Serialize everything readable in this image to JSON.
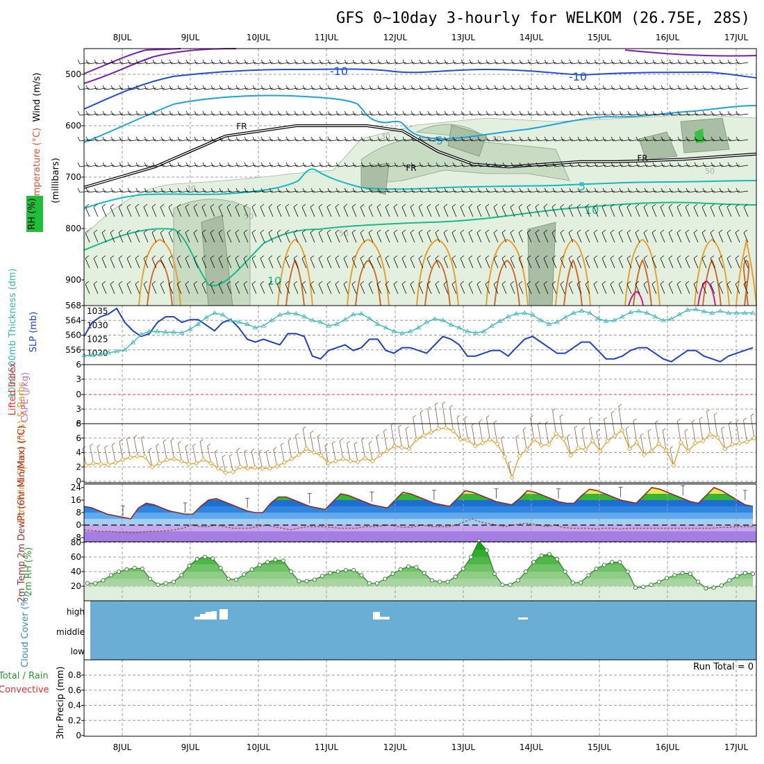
{
  "title": "GFS 0~10day 3-hourly for WELKOM (26.75E, 28S)",
  "dates": [
    "8JUL",
    "9JUL",
    "10JUL",
    "11JUL",
    "12JUL",
    "13JUL",
    "14JUL",
    "15JUL",
    "16JUL",
    "17JUL"
  ],
  "colors": {
    "cloud": "#6aaed6",
    "temp_fill_top": "#20a020",
    "rh_fill": "#3cb043",
    "dew_line": "#8b5a3c",
    "slp": "#1f3fc8",
    "thickness": "#33b5b5",
    "wind10": "#e69a28",
    "li_zero": "#e33"
  },
  "chart_data": [
    {
      "panel": "upper-air",
      "type": "contour",
      "ylabel_parts": [
        "Wind (m/s)",
        "Temperature (°C)",
        "RH (%)",
        "(millibars)"
      ],
      "yticks": [
        500,
        600,
        700,
        800,
        900
      ],
      "ylim": [
        1000,
        450
      ],
      "contour_labels": [
        "-10",
        "-10",
        "FR",
        "FR",
        "FR",
        "-5",
        "5",
        "10",
        "10",
        "30",
        "30",
        "30",
        "50",
        "50",
        "50"
      ],
      "freezing_level_mb": [
        720,
        700,
        680,
        650,
        620,
        610,
        600,
        600,
        600,
        610,
        650,
        675,
        680,
        675,
        670,
        670,
        668,
        665,
        660,
        655
      ],
      "t10_mb": [
        520,
        500,
        495,
        495,
        495,
        498,
        500,
        500,
        500,
        502,
        505
      ]
    },
    {
      "panel": "thickness-slp",
      "type": "line",
      "ylabel_left": "1000-500mb Thickness (dm)",
      "ylabel_right": "SLP (mb)",
      "yticks_left": [
        556,
        560,
        564,
        568
      ],
      "yticks_right": [
        1020,
        1025,
        1030,
        1035
      ],
      "series": [
        {
          "name": "SLP (mb)",
          "values": [
            1026,
            1031,
            1033,
            1034,
            1036,
            1031,
            1028,
            1026,
            1027,
            1031,
            1033,
            1033,
            1031,
            1032,
            1032,
            1030,
            1028,
            1031,
            1032,
            1029,
            1025,
            1024,
            1025,
            1024,
            1023,
            1027,
            1027,
            1026,
            1019,
            1018,
            1021,
            1022,
            1023,
            1021,
            1022,
            1025,
            1025,
            1021,
            1020,
            1022,
            1022,
            1021,
            1020,
            1023,
            1026,
            1025,
            1023,
            1019,
            1019,
            1020,
            1021,
            1021,
            1019,
            1022,
            1025,
            1026,
            1024,
            1022,
            1020,
            1020,
            1022,
            1024,
            1024,
            1021,
            1018,
            1018,
            1019,
            1021,
            1022,
            1022,
            1020,
            1018,
            1017,
            1019,
            1021,
            1021,
            1019,
            1018,
            1017,
            1019,
            1020,
            1021,
            1022
          ]
        },
        {
          "name": "1000-500mb Thickness (dm)",
          "values": [
            554.5,
            554.5,
            554.8,
            555.2,
            555.6,
            556,
            558,
            560.2,
            561,
            561,
            560.8,
            560.8,
            560.6,
            561.6,
            563,
            564.8,
            566,
            565.5,
            564,
            563.5,
            563,
            562,
            562.5,
            564,
            565.5,
            566,
            565.8,
            565,
            564,
            563.5,
            562.5,
            563,
            564.2,
            565.6,
            565.8,
            564.5,
            563,
            562,
            561,
            560.5,
            561,
            562,
            563.5,
            564.4,
            564,
            562.8,
            562,
            561,
            560.6,
            561,
            562.5,
            563.8,
            565,
            565.8,
            566,
            565.5,
            564,
            563,
            563.5,
            564.8,
            566,
            566.6,
            566,
            564.5,
            563.8,
            564,
            565,
            566.2,
            566.5,
            566,
            565,
            564,
            564.4,
            565.6,
            566.8,
            567,
            566.4,
            566,
            566.5,
            566,
            566,
            566,
            566
          ]
        }
      ]
    },
    {
      "panel": "stability",
      "type": "line",
      "ylabel_left": "Lifted Index",
      "ylabel_right": "CAPE (J/kg)",
      "yticks": [
        "6",
        "3",
        "0",
        "3",
        "6"
      ]
    },
    {
      "panel": "wind10",
      "type": "line",
      "ylabel": "10m Wind Speed (m/s) & Barbs",
      "yticks": [
        0,
        2,
        4,
        6,
        8
      ],
      "series": [
        {
          "name": "10m Wind Speed",
          "values": [
            2.2,
            2.5,
            2.4,
            2.3,
            2.6,
            3,
            3.3,
            3.5,
            3.4,
            2,
            2.5,
            3,
            3.1,
            2.8,
            2.4,
            2.5,
            3,
            2.5,
            1.8,
            1.2,
            1.3,
            2,
            1.8,
            1.9,
            1.8,
            1.8,
            2.1,
            2.6,
            3.1,
            3.7,
            4.5,
            4,
            3.6,
            2.5,
            2.8,
            3.1,
            2.8,
            2.7,
            3.2,
            2.8,
            3.6,
            4.2,
            4.9,
            4.7,
            4.5,
            5.8,
            6.4,
            6.8,
            7.3,
            7.4,
            7,
            5.8,
            5.7,
            4.9,
            5.3,
            5.8,
            5.2,
            3.4,
            0.5,
            3.5,
            4.4,
            5.8,
            5,
            5.1,
            6.6,
            5.9,
            3.6,
            4.6,
            4.4,
            5.6,
            4.2,
            5.6,
            6.3,
            7.1,
            4.5,
            5.4,
            3.7,
            4.2,
            5.2,
            4.3,
            2.2,
            5.4,
            4.2,
            5.3,
            5.6,
            6.5,
            6.1,
            4.5,
            5.1,
            5.3,
            5.5,
            6
          ]
        }
      ]
    },
    {
      "panel": "temperature",
      "type": "area",
      "ylabel": "2m Temp 2m DewPt (6hr Min/Max) (°C)",
      "yticks": [
        -8,
        0,
        8,
        16,
        24
      ],
      "series": [
        {
          "name": "2m Temp",
          "values": [
            12,
            11,
            9,
            7,
            6,
            5,
            4,
            11,
            14,
            13,
            11,
            9,
            8,
            7,
            7,
            12,
            16,
            17,
            15,
            13,
            11,
            9,
            8,
            8,
            14,
            18,
            18,
            16,
            14,
            12,
            11,
            10,
            15,
            20,
            19,
            17,
            15,
            13,
            12,
            11,
            16,
            21,
            20,
            18,
            16,
            14,
            13,
            12,
            17,
            22,
            21,
            19,
            17,
            15,
            14,
            13,
            17,
            22,
            21,
            19,
            17,
            15,
            14,
            14,
            19,
            23,
            22,
            20,
            18,
            16,
            15,
            14,
            19,
            24,
            23,
            21,
            19,
            17,
            15,
            14,
            19,
            24,
            22,
            19,
            16,
            13,
            12
          ]
        },
        {
          "name": "2m DewPt",
          "values": [
            -3,
            -3.5,
            -4,
            -4,
            -4.5,
            -4.5,
            -5,
            -4.5,
            -4,
            -4,
            -3.5,
            -3,
            -2,
            0,
            -1,
            -1,
            0,
            -1,
            -2,
            -2,
            -2,
            -1,
            0,
            -1,
            -2,
            -3,
            -2,
            -1,
            -1,
            -1,
            -1.5,
            -2,
            -2,
            -2,
            -1,
            -1,
            -0.5,
            0,
            -1,
            -1.5,
            -1,
            0,
            -1,
            -1,
            -1,
            0,
            2,
            4,
            2,
            1,
            0,
            -1,
            0,
            1,
            1,
            0,
            -1,
            0,
            -1.5,
            -2,
            -2,
            -2,
            -2.5,
            -2,
            -2,
            -2.5,
            -2,
            -2,
            -2,
            -2,
            -2,
            -2,
            -2,
            -2,
            -2,
            -2,
            -2,
            -1.5,
            -1.5,
            -1,
            -1,
            -1
          ]
        }
      ]
    },
    {
      "panel": "rh",
      "type": "area",
      "ylabel": "2m RH (%)",
      "yticks": [
        20,
        40,
        60,
        80
      ],
      "series": [
        {
          "name": "2m RH",
          "values": [
            24,
            24,
            28,
            35,
            40,
            43,
            45,
            44,
            30,
            22,
            24,
            26,
            35,
            48,
            57,
            60,
            58,
            45,
            30,
            29,
            36,
            43,
            49,
            53,
            56,
            55,
            40,
            27,
            27,
            29,
            34,
            38,
            40,
            42,
            42,
            35,
            24,
            24,
            30,
            37,
            43,
            47,
            46,
            38,
            28,
            26,
            26,
            33,
            44,
            60,
            82,
            69,
            37,
            22,
            22,
            28,
            40,
            53,
            62,
            64,
            57,
            40,
            25,
            25,
            35,
            44,
            49,
            53,
            53,
            40,
            18,
            19,
            22,
            26,
            31,
            35,
            38,
            37,
            26,
            17,
            18,
            21,
            28,
            34,
            38,
            37
          ]
        }
      ]
    },
    {
      "panel": "cloud",
      "type": "bar",
      "ylabel": "Cloud Cover (%)",
      "yticks": [
        "high",
        "middle",
        "low"
      ]
    },
    {
      "panel": "precip",
      "type": "bar",
      "ylabel_left": "Total / Rain",
      "ylabel_left2": "Convective",
      "ylabel": "3hr Precip (mm)",
      "yticks": [
        0,
        0.2,
        0.4,
        0.6,
        0.8
      ],
      "run_total_label": "Run Total = 0"
    }
  ]
}
